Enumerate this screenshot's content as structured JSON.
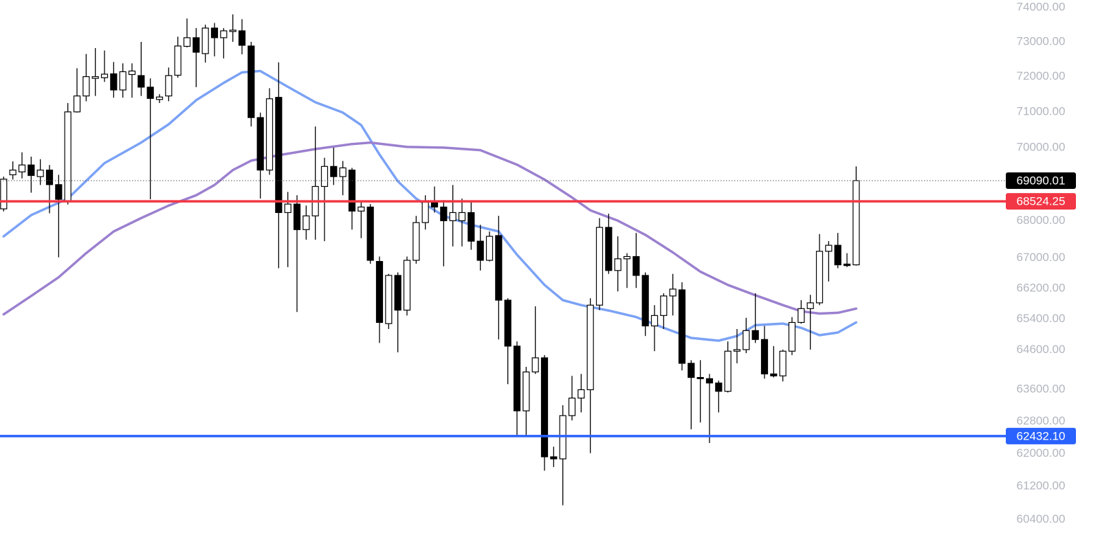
{
  "chart_data": {
    "type": "candlestick",
    "log_scale": true,
    "ylim": [
      59815,
      74222
    ],
    "xlim": [
      -0.4,
      109.1
    ],
    "yticks": [
      {
        "value": 74000,
        "label": "74000.00"
      },
      {
        "value": 73000,
        "label": "73000.00"
      },
      {
        "value": 72000,
        "label": "72000.00"
      },
      {
        "value": 71000,
        "label": "71000.00"
      },
      {
        "value": 70000,
        "label": "70000.00"
      },
      {
        "value": 68000,
        "label": "68000.00"
      },
      {
        "value": 67000,
        "label": "67000.00"
      },
      {
        "value": 66200,
        "label": "66200.00"
      },
      {
        "value": 65400,
        "label": "65400.00"
      },
      {
        "value": 64600,
        "label": "64600.00"
      },
      {
        "value": 63600,
        "label": "63600.00"
      },
      {
        "value": 62800,
        "label": "62800.00"
      },
      {
        "value": 62000,
        "label": "62000.00"
      },
      {
        "value": 61200,
        "label": "61200.00"
      },
      {
        "value": 60400,
        "label": "60400.00"
      }
    ],
    "up_color": "#ffffff",
    "down_color": "#000000",
    "open": [
      68320,
      69250,
      69330,
      69520,
      69200,
      69380,
      68980,
      68530,
      71000,
      71450,
      71950,
      71970,
      72080,
      71620,
      72060,
      72030,
      71700,
      71350,
      71450,
      72040,
      72870,
      73120,
      72660,
      73400,
      73120,
      73300,
      73320,
      72880,
      70840,
      69380,
      71410,
      68220,
      68450,
      67760,
      68130,
      68930,
      69480,
      69200,
      69380,
      68260,
      68370,
      66910,
      65280,
      66540,
      65630,
      66940,
      67950,
      68540,
      68370,
      68000,
      68000,
      68220,
      67450,
      66940,
      67600,
      65890,
      64700,
      63060,
      64040,
      64400,
      61920,
      61870,
      62940,
      63380,
      63590,
      65760,
      67820,
      66670,
      66980,
      67040,
      66540,
      65220,
      65490,
      66000,
      66160,
      64260,
      63900,
      63870,
      63760,
      63550,
      64570,
      64610,
      65100,
      64870,
      63990,
      63940,
      64570,
      65310,
      65670,
      65820,
      67180,
      67340,
      66840,
      66820
    ],
    "high": [
      69200,
      69620,
      69870,
      69750,
      69680,
      69520,
      69250,
      71250,
      72240,
      72650,
      72820,
      72750,
      72420,
      72380,
      72380,
      73000,
      71950,
      71500,
      72260,
      73150,
      73680,
      73400,
      73500,
      73550,
      73400,
      73800,
      73660,
      73000,
      70980,
      71670,
      72410,
      68780,
      68690,
      68410,
      70590,
      69720,
      70000,
      69630,
      69440,
      68500,
      68450,
      67040,
      66580,
      66620,
      67040,
      68130,
      68690,
      68930,
      68560,
      68970,
      68600,
      68500,
      67890,
      67710,
      68130,
      65940,
      64820,
      64170,
      65730,
      64470,
      62170,
      63200,
      63940,
      63990,
      65940,
      68070,
      68190,
      67580,
      67130,
      67670,
      66620,
      65760,
      66070,
      66580,
      66360,
      64340,
      64340,
      63990,
      63820,
      64820,
      65140,
      65430,
      66070,
      65220,
      64700,
      64610,
      65450,
      65890,
      66030,
      67640,
      67450,
      67670,
      67130,
      69480
    ],
    "low": [
      68250,
      69120,
      69150,
      68760,
      68970,
      68200,
      67020,
      68440,
      70980,
      71300,
      71450,
      71850,
      71400,
      71400,
      71400,
      71450,
      68580,
      71250,
      71300,
      71970,
      72840,
      71700,
      72400,
      72580,
      72520,
      73000,
      72640,
      70590,
      68600,
      69250,
      66730,
      66760,
      65580,
      67490,
      67490,
      67450,
      68970,
      68690,
      67760,
      67530,
      66850,
      64780,
      65140,
      64540,
      65490,
      66850,
      67760,
      68220,
      66780,
      67310,
      67310,
      67220,
      66670,
      66910,
      64870,
      63730,
      62430,
      62430,
      63990,
      61580,
      61670,
      60740,
      62820,
      63020,
      62010,
      65630,
      66580,
      66120,
      66210,
      66210,
      64960,
      64570,
      65140,
      65490,
      64080,
      62600,
      62770,
      62260,
      63020,
      63520,
      64260,
      64520,
      64780,
      63870,
      63900,
      63800,
      64470,
      65280,
      64610,
      65760,
      66380,
      66730,
      66760,
      66800
    ],
    "close": [
      69130,
      69380,
      69520,
      69230,
      69380,
      68980,
      68580,
      71000,
      71450,
      72000,
      72000,
      72070,
      71620,
      72140,
      72160,
      71700,
      71380,
      71420,
      72030,
      72880,
      73120,
      72700,
      73400,
      73120,
      73320,
      73340,
      72900,
      70840,
      69380,
      71370,
      68220,
      68450,
      67760,
      68130,
      68930,
      69480,
      69200,
      69440,
      68260,
      68370,
      66940,
      65310,
      66540,
      65630,
      66940,
      67950,
      68500,
      68370,
      68000,
      68220,
      68220,
      67450,
      66940,
      67580,
      65890,
      64700,
      63060,
      64040,
      64400,
      61920,
      61870,
      62940,
      63380,
      63590,
      65760,
      67820,
      66670,
      66980,
      67040,
      66540,
      65220,
      65490,
      66000,
      66180,
      64260,
      63900,
      63870,
      63760,
      63550,
      64570,
      64610,
      65100,
      64870,
      63990,
      63940,
      64570,
      65310,
      65670,
      65820,
      67180,
      67340,
      66820,
      66800,
      69090.01
    ],
    "moving_averages": [
      {
        "color": "#7ba2f5",
        "x": [
          0,
          3,
          7,
          11,
          15,
          18,
          21,
          24,
          26,
          28,
          31,
          34,
          37,
          39,
          41,
          43,
          45,
          48,
          51,
          54,
          56,
          59,
          61,
          63,
          66,
          69,
          72,
          75,
          78,
          80,
          82,
          85,
          87,
          89,
          91,
          93
        ],
        "values": [
          67580,
          68150,
          68600,
          69570,
          70140,
          70650,
          71330,
          71820,
          72120,
          72160,
          71710,
          71270,
          70980,
          70630,
          69810,
          69070,
          68600,
          68130,
          67890,
          67710,
          67090,
          66290,
          65890,
          65760,
          65620,
          65450,
          65170,
          64910,
          64840,
          64960,
          65240,
          65280,
          65170,
          64980,
          65050,
          65310
        ]
      },
      {
        "color": "#9b80cf",
        "x": [
          0,
          3,
          6,
          9,
          12,
          15,
          18,
          21,
          23,
          25,
          27,
          30,
          34,
          38,
          40,
          42,
          44,
          48,
          52,
          56,
          59,
          62,
          64,
          67,
          70,
          73,
          76,
          79,
          82,
          85,
          87,
          89,
          91,
          93
        ],
        "values": [
          65520,
          66000,
          66490,
          67130,
          67710,
          68070,
          68410,
          68690,
          68970,
          69380,
          69640,
          69790,
          69960,
          70100,
          70140,
          70080,
          70020,
          70000,
          69930,
          69530,
          69120,
          68630,
          68280,
          68000,
          67620,
          67150,
          66640,
          66290,
          66020,
          65760,
          65600,
          65540,
          65560,
          65670
        ]
      }
    ],
    "levels": [
      {
        "value": 69090.01,
        "color": "#000000",
        "line": "dotted"
      },
      {
        "value": 68524.25,
        "color": "#f23645",
        "line": "solid"
      },
      {
        "value": 62432.1,
        "value_label": "62432.10",
        "color": "#2962ff",
        "line": "solid"
      }
    ]
  }
}
